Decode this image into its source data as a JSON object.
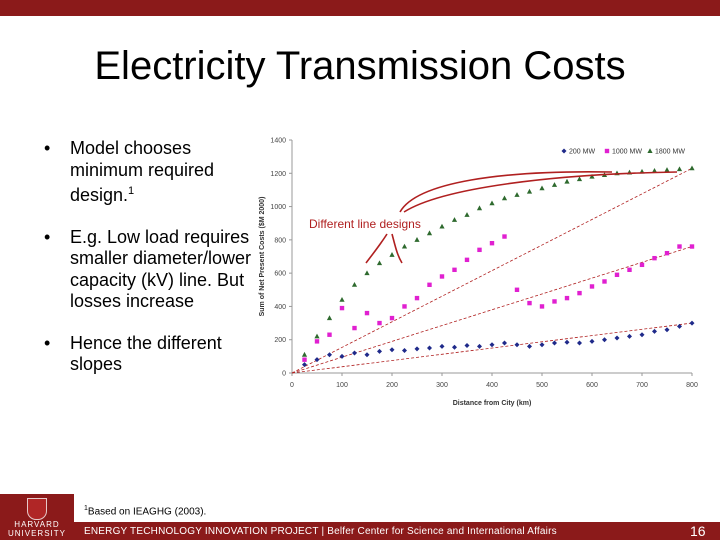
{
  "slide": {
    "title": "Electricity Transmission Costs",
    "bullets": [
      {
        "text": "Model chooses minimum required design.",
        "sup": "1"
      },
      {
        "text": "E.g. Low load requires smaller diameter/lower capacity (kV) line. But losses increase",
        "sup": ""
      },
      {
        "text": "Hence the different slopes",
        "sup": ""
      }
    ],
    "bullet_marker": "•",
    "footnote": {
      "sup": "1",
      "text": "Based on IEAGHG (2003)."
    },
    "footer": {
      "text": "ENERGY TECHNOLOGY INNOVATION PROJECT | Belfer Center for Science and International Affairs",
      "page": "16"
    },
    "logo": {
      "line1": "HARVARD",
      "line2": "UNIVERSITY"
    },
    "annotation": "Different line designs"
  },
  "colors": {
    "brand": "#8b1a1a",
    "series_200": "#1f2a8a",
    "series_1000": "#e020d0",
    "series_1800": "#2e6a2e",
    "annotation": "#b02020"
  },
  "chart_data": {
    "type": "scatter",
    "xlabel": "Distance from City (km)",
    "ylabel": "Sum of Net Present Costs ($M 2000)",
    "xlim": [
      0,
      800
    ],
    "ylim": [
      0,
      1400
    ],
    "xticks": [
      0,
      100,
      200,
      300,
      400,
      500,
      600,
      700,
      800
    ],
    "yticks": [
      0,
      200,
      400,
      600,
      800,
      1000,
      1200,
      1400
    ],
    "legend_position": "top-right",
    "series": [
      {
        "name": "200 MW",
        "marker": "diamond",
        "x": [
          25,
          50,
          75,
          100,
          125,
          150,
          175,
          200,
          225,
          250,
          275,
          300,
          325,
          350,
          375,
          400,
          425,
          450,
          475,
          500,
          525,
          550,
          575,
          600,
          625,
          650,
          675,
          700,
          725,
          750,
          775,
          800
        ],
        "y": [
          50,
          80,
          110,
          100,
          120,
          110,
          130,
          140,
          135,
          145,
          150,
          160,
          155,
          165,
          160,
          170,
          180,
          170,
          160,
          170,
          180,
          185,
          180,
          190,
          200,
          210,
          220,
          230,
          250,
          260,
          280,
          300
        ]
      },
      {
        "name": "1000 MW",
        "marker": "square",
        "x": [
          25,
          50,
          75,
          100,
          125,
          150,
          175,
          200,
          225,
          250,
          275,
          300,
          325,
          350,
          375,
          400,
          425,
          450,
          475,
          500,
          525,
          550,
          575,
          600,
          625,
          650,
          675,
          700,
          725,
          750,
          775,
          800
        ],
        "y": [
          80,
          190,
          230,
          390,
          270,
          360,
          300,
          330,
          400,
          450,
          530,
          580,
          620,
          680,
          740,
          780,
          820,
          500,
          420,
          400,
          430,
          450,
          480,
          520,
          550,
          590,
          620,
          650,
          690,
          720,
          760,
          760
        ]
      },
      {
        "name": "1800 MW",
        "marker": "triangle",
        "x": [
          25,
          50,
          75,
          100,
          125,
          150,
          175,
          200,
          225,
          250,
          275,
          300,
          325,
          350,
          375,
          400,
          425,
          450,
          475,
          500,
          525,
          550,
          575,
          600,
          625,
          650,
          675,
          700,
          725,
          750,
          775,
          800
        ],
        "y": [
          110,
          220,
          330,
          440,
          530,
          600,
          660,
          710,
          760,
          800,
          840,
          880,
          920,
          950,
          990,
          1020,
          1050,
          1070,
          1090,
          1110,
          1130,
          1150,
          1165,
          1180,
          1190,
          1200,
          1205,
          1210,
          1215,
          1220,
          1225,
          1230
        ]
      }
    ]
  }
}
